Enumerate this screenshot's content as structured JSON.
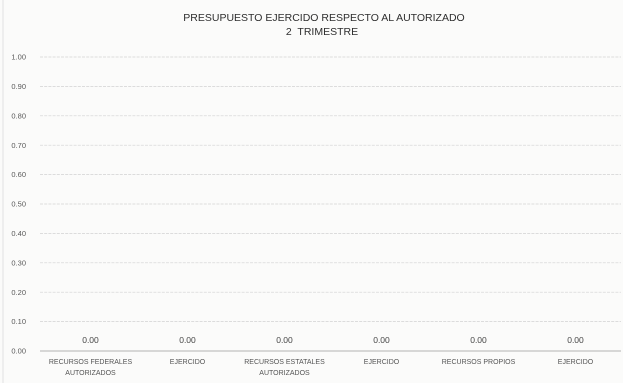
{
  "chart_data": {
    "type": "bar",
    "title": "PRESUPUESTO EJERCIDO RESPECTO AL AUTORIZADO",
    "subtitle": "2  TRIMESTRE",
    "categories": [
      "RECURSOS FEDERALES AUTORIZADOS",
      "EJERCIDO",
      "RECURSOS ESTATALES AUTORIZADOS",
      "EJERCIDO",
      "RECURSOS PROPIOS",
      "EJERCIDO"
    ],
    "values": [
      0,
      0,
      0,
      0,
      0,
      0
    ],
    "data_labels": [
      "0.00",
      "0.00",
      "0.00",
      "0.00",
      "0.00",
      "0.00"
    ],
    "yticks": [
      0,
      0.1,
      0.2,
      0.3,
      0.4,
      0.5,
      0.6,
      0.7,
      0.8,
      0.9,
      1.0
    ],
    "ylim": [
      0,
      1
    ],
    "grid": true
  },
  "colors": {
    "background": "#fbfbfa",
    "gridline": "#d2d2d2",
    "baseline": "#b3b3b3",
    "text": "#3a3a3a"
  }
}
